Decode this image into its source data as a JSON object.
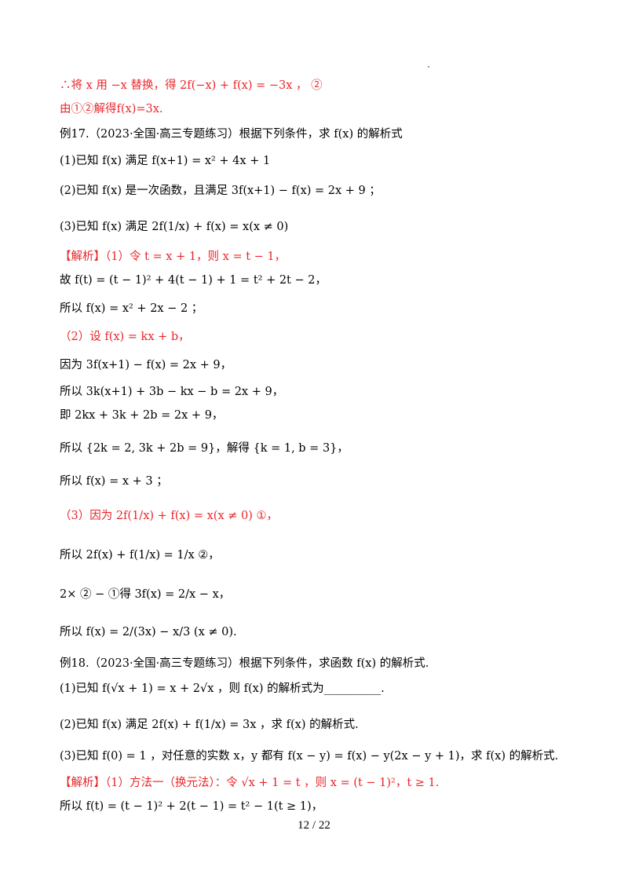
{
  "lines": [
    "∴将 x 用 −x 替换，得 2f(−x) + f(x) = −3x ， ②",
    "由①②解得f(x)=3x.",
    "例17.（2023·全国·高三专题练习）根据下列条件，求 f(x) 的解析式",
    "(1)已知 f(x) 满足 f(x+1) = x² + 4x + 1",
    "(2)已知 f(x) 是一次函数，且满足 3f(x+1) − f(x) = 2x + 9 ；",
    "(3)已知 f(x) 满足 2f(1/x) + f(x) = x(x ≠ 0)",
    "【解析】（1）令 t = x + 1，则 x = t − 1，",
    "故 f(t) = (t − 1)² + 4(t − 1) + 1 = t² + 2t − 2，",
    "所以 f(x) = x² + 2x − 2 ；",
    "（2）设 f(x) = kx + b，",
    "因为 3f(x+1) − f(x) = 2x + 9，",
    "所以 3k(x+1) + 3b − kx − b = 2x + 9，",
    "即 2kx + 3k + 2b = 2x + 9，",
    "所以 {2k = 2, 3k + 2b = 9}，解得 {k = 1, b = 3}，",
    "所以 f(x) = x + 3 ；",
    "（3）因为 2f(1/x) + f(x) = x(x ≠ 0) ①，",
    "所以 2f(x) + f(1/x) = 1/x ②，",
    "2× ② − ①得 3f(x) = 2/x − x，",
    "所以 f(x) = 2/(3x) − x/3 (x ≠ 0).",
    "例18.（2023·全国·高三专题练习）根据下列条件，求函数 f(x) 的解析式.",
    "(1)已知 f(√x + 1) = x + 2√x ，则 f(x) 的解析式为__________.",
    "(2)已知 f(x) 满足 2f(x) + f(1/x) = 3x ，求 f(x) 的解析式.",
    "(3)已知 f(0) = 1 ，对任意的实数 x，y 都有 f(x − y) = f(x) − y(2x − y + 1)，求 f(x) 的解析式.",
    "【解析】（1）方法一（换元法）：令 √x + 1 = t ，则 x = (t − 1)²，t ≥ 1.",
    "所以 f(t) = (t − 1)² + 2(t − 1) = t² − 1(t ≥ 1)，"
  ],
  "page_number": "12 / 22",
  "colors": {
    "accent": "#e8262a",
    "text": "#000000"
  }
}
